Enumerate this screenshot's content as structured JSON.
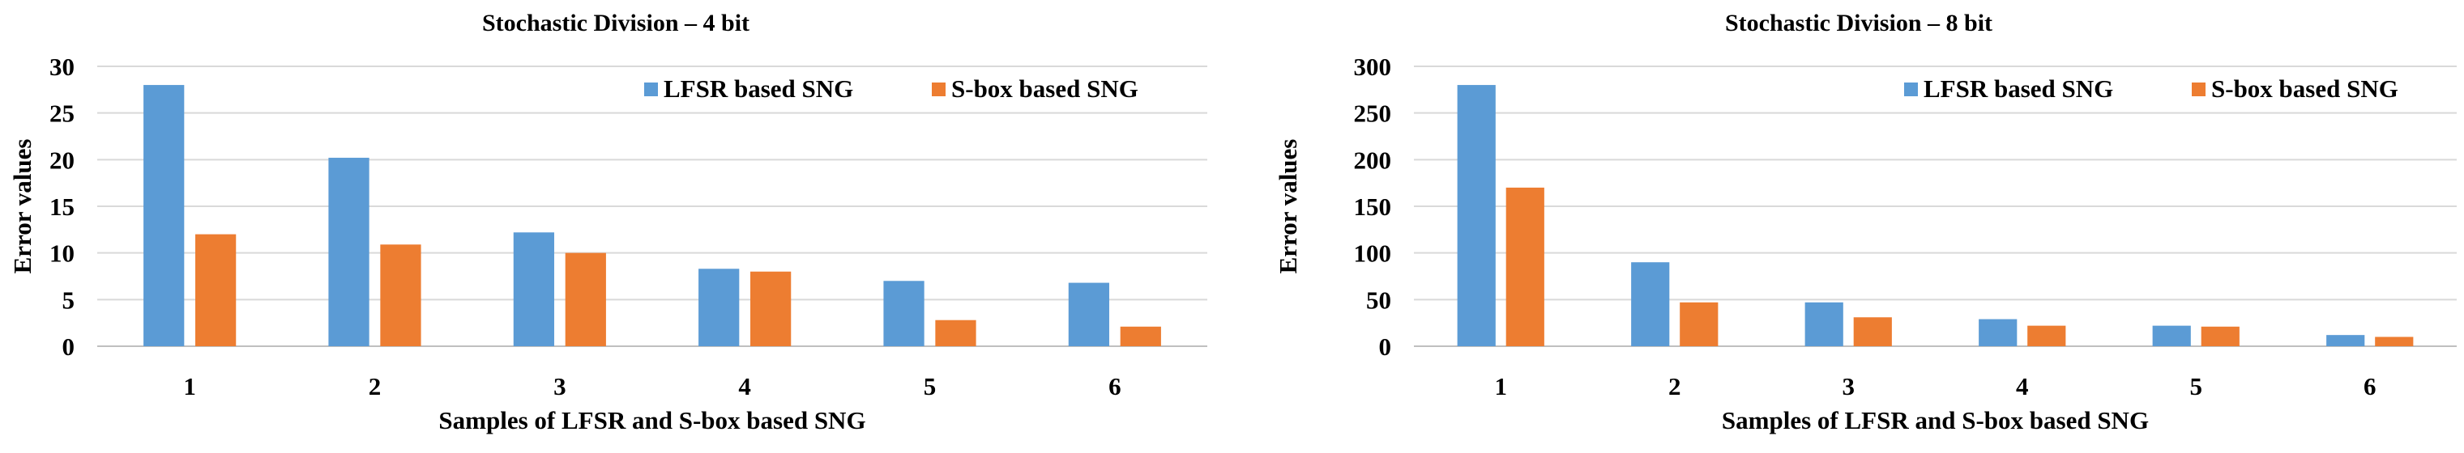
{
  "chart_data": [
    {
      "type": "bar",
      "title": "Stochastic Division – 4 bit",
      "xlabel": "Samples of LFSR and S-box based SNG",
      "ylabel": "Error values",
      "categories": [
        "1",
        "2",
        "3",
        "4",
        "5",
        "6"
      ],
      "yticks": [
        "0",
        "5",
        "10",
        "15",
        "20",
        "25",
        "30"
      ],
      "ylim": [
        0,
        30
      ],
      "grid": true,
      "legend_position": "top-right",
      "series": [
        {
          "name": "LFSR based SNG",
          "color": "#5b9bd5",
          "values": [
            28,
            20.2,
            12.2,
            8.3,
            7,
            6.8
          ]
        },
        {
          "name": "S-box based SNG",
          "color": "#ed7d31",
          "values": [
            12,
            10.9,
            10,
            8,
            2.8,
            2.1
          ]
        }
      ]
    },
    {
      "type": "bar",
      "title": "Stochastic Division – 8 bit",
      "xlabel": "Samples of LFSR and S-box based SNG",
      "ylabel": "Error values",
      "categories": [
        "1",
        "2",
        "3",
        "4",
        "5",
        "6"
      ],
      "yticks": [
        "0",
        "50",
        "100",
        "150",
        "200",
        "250",
        "300"
      ],
      "ylim": [
        0,
        300
      ],
      "grid": true,
      "legend_position": "top-right",
      "series": [
        {
          "name": "LFSR based SNG",
          "color": "#5b9bd5",
          "values": [
            280,
            90,
            47,
            29,
            22,
            12
          ]
        },
        {
          "name": "S-box based SNG",
          "color": "#ed7d31",
          "values": [
            170,
            47,
            31,
            22,
            21,
            10
          ]
        }
      ]
    }
  ]
}
